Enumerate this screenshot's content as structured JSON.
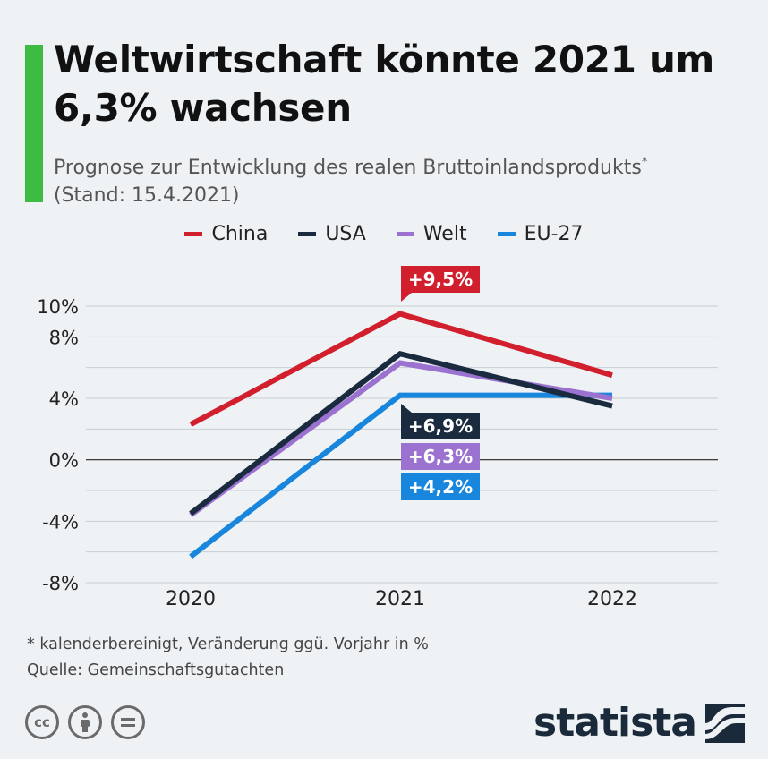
{
  "header": {
    "title": "Weltwirtschaft könnte 2021 um 6,3% wachsen",
    "subtitle": "Prognose zur Entwicklung des realen Bruttoinlandsprodukts",
    "subtitle_marker": "*",
    "subtitle_date": "(Stand: 15.4.2021)",
    "accent_color": "#3dbb43"
  },
  "chart_data": {
    "type": "line",
    "x": [
      "2020",
      "2021",
      "2022"
    ],
    "ylim": [
      -8,
      10
    ],
    "yticks": [
      -8,
      -4,
      0,
      4,
      8,
      10
    ],
    "ytick_labels": [
      "-8%",
      "-4%",
      "0%",
      "4%",
      "8%",
      "10%"
    ],
    "grid": true,
    "legend_position": "top-center",
    "series": [
      {
        "name": "China",
        "values": [
          2.3,
          9.5,
          5.5
        ],
        "color": "#d21f2d"
      },
      {
        "name": "USA",
        "values": [
          -3.5,
          6.9,
          3.5
        ],
        "color": "#1a2a3f"
      },
      {
        "name": "Welt",
        "values": [
          -3.6,
          6.3,
          4.0
        ],
        "color": "#9b72cf"
      },
      {
        "name": "EU-27",
        "values": [
          -6.3,
          4.2,
          4.2
        ],
        "color": "#1786dc"
      }
    ],
    "annotations": [
      {
        "series": "China",
        "x": "2021",
        "label": "+9,5%"
      },
      {
        "series": "USA",
        "x": "2021",
        "label": "+6,9%"
      },
      {
        "series": "Welt",
        "x": "2021",
        "label": "+6,3%"
      },
      {
        "series": "EU-27",
        "x": "2021",
        "label": "+4,2%"
      }
    ]
  },
  "footer": {
    "footnote": "* kalenderbereinigt, Veränderung ggü. Vorjahr in %",
    "source": "Quelle: Gemeinschaftsgutachten",
    "brand": "statista",
    "license_icons": [
      "cc-icon",
      "by-person-icon",
      "nd-equals-icon"
    ]
  }
}
